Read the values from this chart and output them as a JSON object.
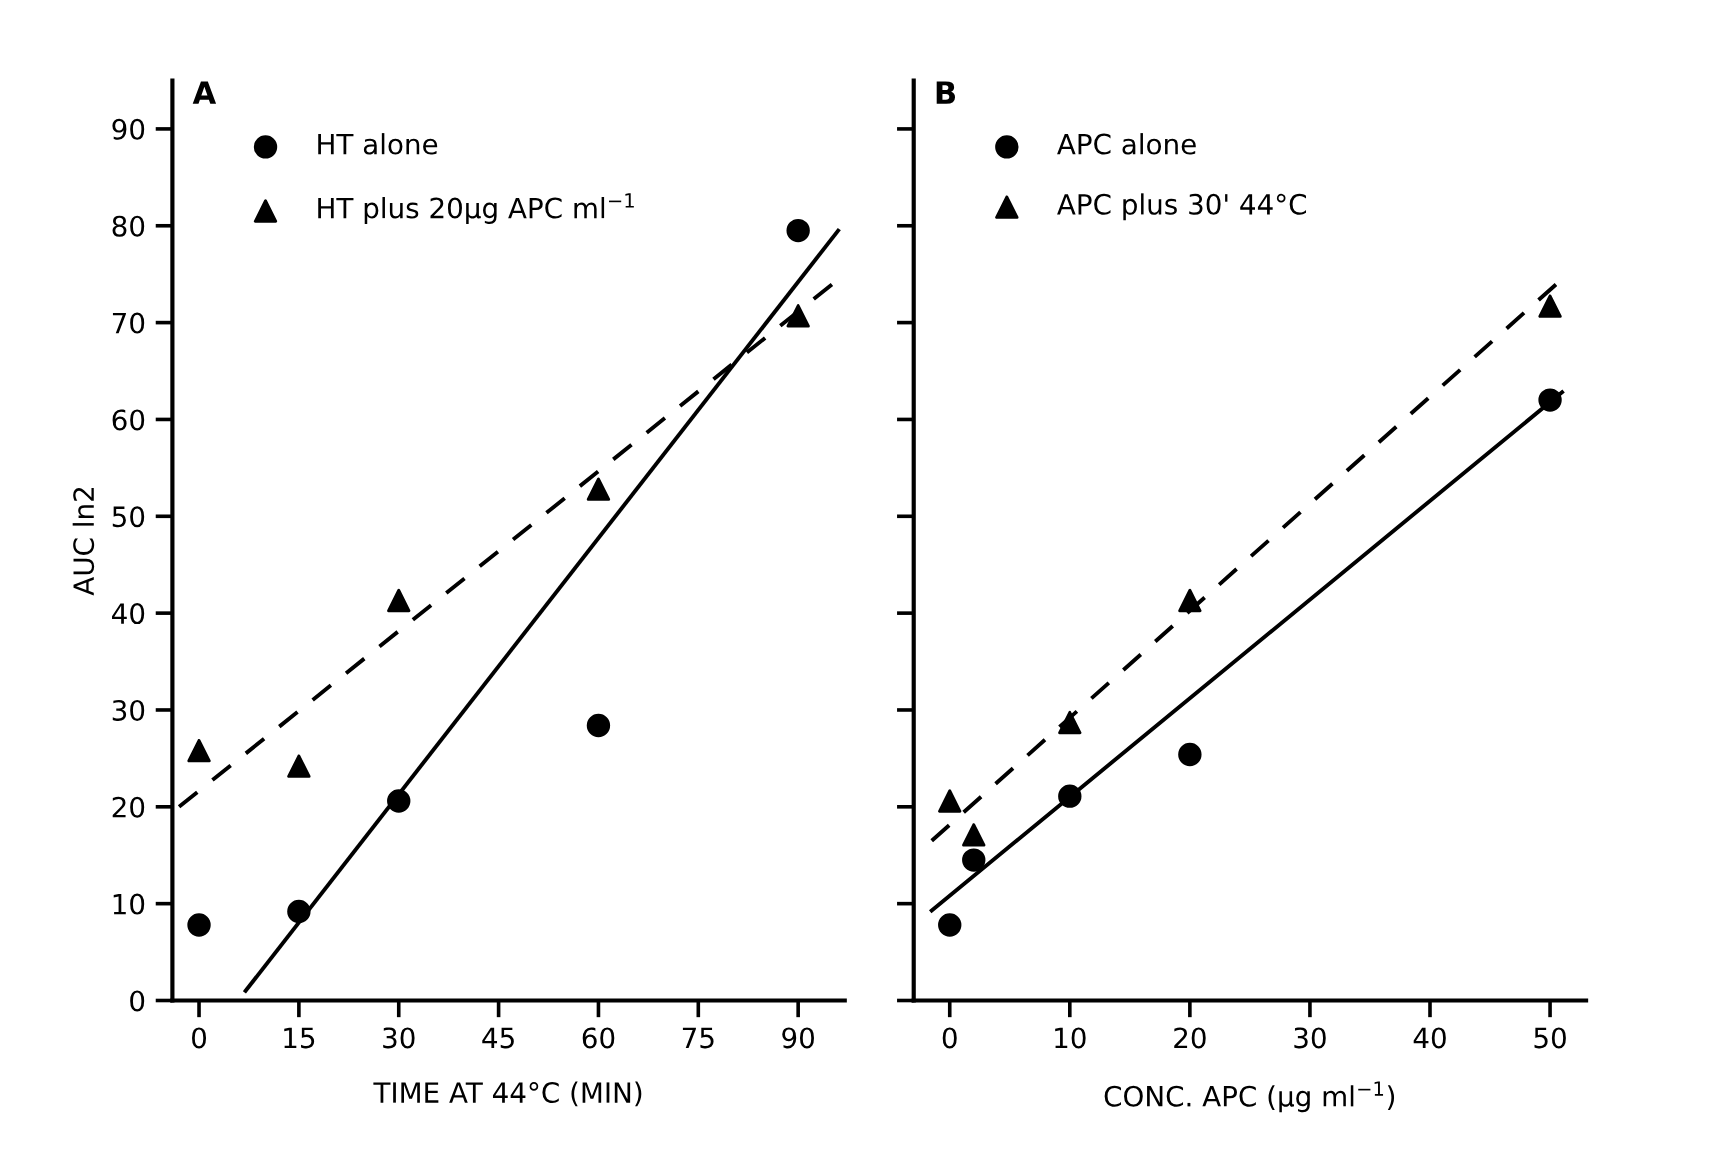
{
  "chart_data": [
    {
      "type": "scatter",
      "xlabel": "TIME AT 44°C (MIN)",
      "ylabel": "AUC ln2",
      "annotations": [
        "A"
      ],
      "xlim": [
        -4,
        97
      ],
      "ylim": [
        0,
        95
      ],
      "xticks": [
        0,
        15,
        30,
        45,
        60,
        75,
        90
      ],
      "yticks": [
        0,
        10,
        20,
        30,
        40,
        50,
        60,
        70,
        80,
        90
      ],
      "grid": false,
      "legend": "top left",
      "series": [
        {
          "name": "HT alone",
          "color": "#000000",
          "marker": "circle",
          "x": [
            0,
            15,
            30,
            60,
            90
          ],
          "values": [
            7.8,
            9.2,
            20.6,
            28.4,
            79.5
          ]
        },
        {
          "name": "HT plus 20μg APC ml$^{−1}$",
          "color": "#000000",
          "marker": "triangle",
          "x": [
            0,
            15,
            30,
            60,
            90
          ],
          "values": [
            25.8,
            24.2,
            41.3,
            52.8,
            70.7
          ]
        },
        {
          "type": "line",
          "color": "#000000",
          "line_style": "solid",
          "x": [
            7,
            96
          ],
          "values": [
            1,
            79.5
          ]
        },
        {
          "type": "line",
          "color": "#000000",
          "line_style": "dashed",
          "x": [
            -3,
            97
          ],
          "values": [
            20,
            75
          ]
        }
      ]
    },
    {
      "type": "scatter",
      "xlabel": "CONC. APC (μg ml$^{−1}$)",
      "annotations": [
        "B"
      ],
      "xlim": [
        -3,
        53
      ],
      "ylim": [
        0,
        95
      ],
      "xticks": [
        0,
        10,
        20,
        30,
        40,
        50
      ],
      "yticks": [
        0,
        10,
        20,
        30,
        40,
        50,
        60,
        70,
        80,
        90
      ],
      "tick_labels": "x",
      "grid": false,
      "legend": "top left",
      "series": [
        {
          "name": "APC alone",
          "color": "#000000",
          "marker": "circle",
          "x": [
            0,
            2,
            10,
            20,
            50
          ],
          "values": [
            7.8,
            14.5,
            21.1,
            25.4,
            62
          ]
        },
        {
          "name": "APC plus 30' 44°C",
          "color": "#000000",
          "marker": "triangle",
          "x": [
            0,
            2,
            10,
            20,
            50
          ],
          "values": [
            20.6,
            17.1,
            28.7,
            41.3,
            71.7
          ]
        },
        {
          "type": "line",
          "color": "#000000",
          "line_style": "solid",
          "x": [
            -1.5,
            51
          ],
          "values": [
            9.3,
            62.8
          ]
        },
        {
          "type": "line",
          "color": "#000000",
          "line_style": "dashed",
          "x": [
            -1.5,
            51
          ],
          "values": [
            16.5,
            74.5
          ]
        }
      ]
    }
  ]
}
